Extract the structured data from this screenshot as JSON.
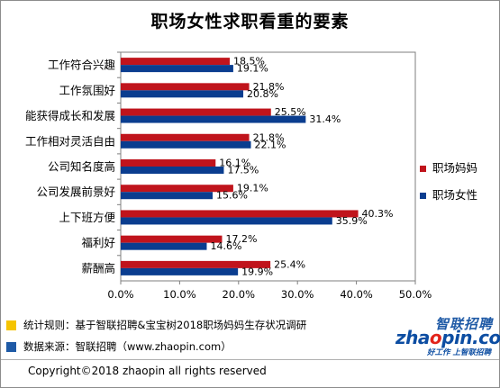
{
  "chart_data": {
    "type": "bar",
    "orientation": "horizontal",
    "title": "职场女性求职看重的要素",
    "categories": [
      "工作符合兴趣",
      "工作氛围好",
      "能获得成长和发展",
      "工作相对灵活自由",
      "公司知名度高",
      "公司发展前景好",
      "上下班方便",
      "福利好",
      "薪酬高"
    ],
    "series": [
      {
        "name": "职场妈妈",
        "color": "#c0141c",
        "values": [
          18.5,
          21.8,
          25.5,
          21.8,
          16.1,
          19.1,
          40.3,
          17.2,
          25.4
        ],
        "labels": [
          "18.5%",
          "21.8%",
          "25.5%",
          "21.8%",
          "16.1%",
          "19.1%",
          "40.3%",
          "17.2%",
          "25.4%"
        ]
      },
      {
        "name": "职场女性",
        "color": "#0a3d8f",
        "values": [
          19.1,
          20.8,
          31.4,
          22.1,
          17.5,
          15.6,
          35.9,
          14.6,
          19.9
        ],
        "labels": [
          "19.1%",
          "20.8%",
          "31.4%",
          "22.1%",
          "17.5%",
          "15.6%",
          "35.9%",
          "14.6%",
          "19.9%"
        ]
      }
    ],
    "xlim": [
      0,
      50
    ],
    "xticks": [
      0,
      10,
      20,
      30,
      40,
      50
    ],
    "xtick_labels": [
      "0.0%",
      "10.0%",
      "20.0%",
      "30.0%",
      "40.0%",
      "50.0%"
    ],
    "legend_position": "right",
    "grid": false
  },
  "footer": {
    "note1": "统计规则：基于智联招聘&宝宝树2018职场妈妈生存状况调研",
    "note1_color": "#f5c400",
    "note2": "数据来源：智联招聘（www.zhaopin.com）",
    "note2_color": "#1f5aa6",
    "copyright": "Copyright©2018 zhaopin all rights reserved"
  },
  "logo": {
    "brand_cn": "智联招聘",
    "domain_pre": "zha",
    "domain_o": "o",
    "domain_post": "pin.com",
    "slogan": "好工作 上智联招聘"
  }
}
